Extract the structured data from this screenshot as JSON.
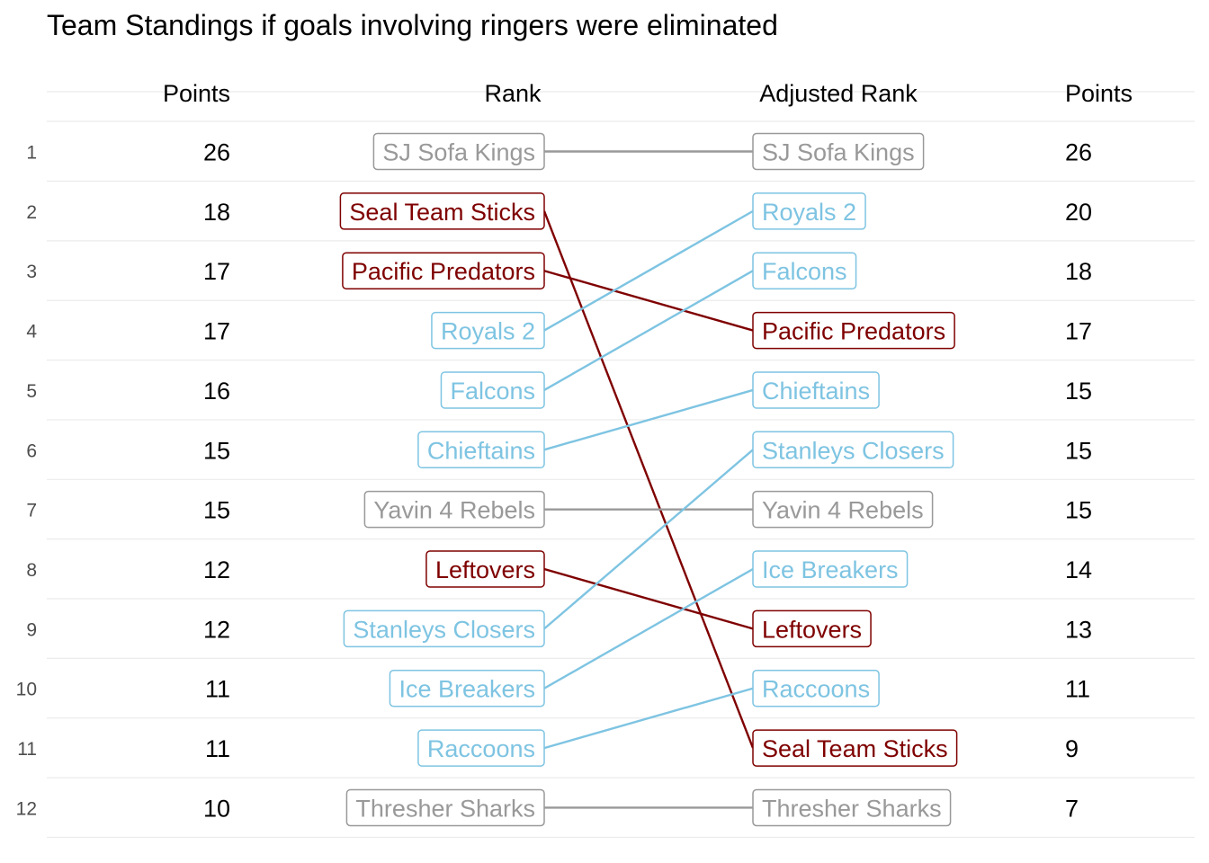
{
  "chart_data": {
    "type": "slope",
    "title": "Team Standings if goals involving ringers were eliminated",
    "columns": {
      "left_points": "Points",
      "rank": "Rank",
      "adjusted_rank": "Adjusted Rank",
      "right_points": "Points"
    },
    "ranks": [
      1,
      2,
      3,
      4,
      5,
      6,
      7,
      8,
      9,
      10,
      11,
      12
    ],
    "teams": [
      {
        "name": "SJ Sofa Kings",
        "rank": 1,
        "points": 26,
        "adjusted_rank": 1,
        "adjusted_points": 26,
        "change": "same"
      },
      {
        "name": "Seal Team Sticks",
        "rank": 2,
        "points": 18,
        "adjusted_rank": 11,
        "adjusted_points": 9,
        "change": "down"
      },
      {
        "name": "Pacific Predators",
        "rank": 3,
        "points": 17,
        "adjusted_rank": 4,
        "adjusted_points": 17,
        "change": "down"
      },
      {
        "name": "Royals 2",
        "rank": 4,
        "points": 17,
        "adjusted_rank": 2,
        "adjusted_points": 20,
        "change": "up"
      },
      {
        "name": "Falcons",
        "rank": 5,
        "points": 16,
        "adjusted_rank": 3,
        "adjusted_points": 18,
        "change": "up"
      },
      {
        "name": "Chieftains",
        "rank": 6,
        "points": 15,
        "adjusted_rank": 5,
        "adjusted_points": 15,
        "change": "up"
      },
      {
        "name": "Yavin 4 Rebels",
        "rank": 7,
        "points": 15,
        "adjusted_rank": 7,
        "adjusted_points": 15,
        "change": "same"
      },
      {
        "name": "Leftovers",
        "rank": 8,
        "points": 12,
        "adjusted_rank": 9,
        "adjusted_points": 13,
        "change": "down"
      },
      {
        "name": "Stanleys Closers",
        "rank": 9,
        "points": 12,
        "adjusted_rank": 6,
        "adjusted_points": 15,
        "change": "up"
      },
      {
        "name": "Ice Breakers",
        "rank": 10,
        "points": 11,
        "adjusted_rank": 8,
        "adjusted_points": 14,
        "change": "up"
      },
      {
        "name": "Raccoons",
        "rank": 11,
        "points": 11,
        "adjusted_rank": 10,
        "adjusted_points": 11,
        "change": "up"
      },
      {
        "name": "Thresher Sharks",
        "rank": 12,
        "points": 10,
        "adjusted_rank": 12,
        "adjusted_points": 7,
        "change": "same"
      }
    ],
    "colors": {
      "up": "#7ec4e2",
      "down": "#7f0000",
      "same": "#999999"
    },
    "grid": true,
    "legend": "none"
  }
}
